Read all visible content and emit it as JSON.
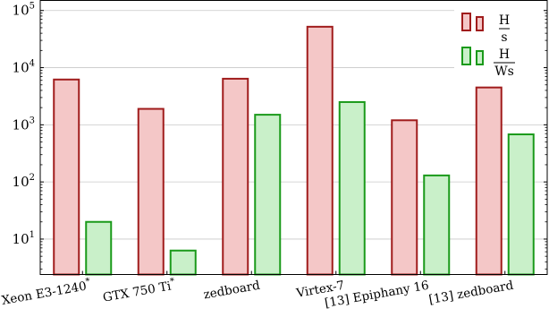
{
  "chart_data": {
    "type": "bar",
    "y_scale": "log",
    "ylim": [
      2.4,
      150000
    ],
    "y_ticks": [
      10,
      100,
      1000,
      10000,
      100000
    ],
    "y_tick_base": "10",
    "y_tick_exponents": [
      "1",
      "2",
      "3",
      "4",
      "5"
    ],
    "grid": "horizontal",
    "legend_position": "top-right",
    "categories": [
      {
        "text": "Xeon E3-1240",
        "sup": "*"
      },
      {
        "text": "GTX 750 Ti",
        "sup": "*"
      },
      {
        "text": "zedboard",
        "sup": ""
      },
      {
        "text": "Virtex-7",
        "sup": ""
      },
      {
        "text": "[13] Epiphany 16",
        "sup": ""
      },
      {
        "text": "[13] zedboard",
        "sup": ""
      }
    ],
    "series": [
      {
        "legend_num": "H",
        "legend_den": "s",
        "fill": "#f4c7c7",
        "stroke": "#a01c1c",
        "values": [
          6200,
          1900,
          6400,
          52000,
          1200,
          4500
        ]
      },
      {
        "legend_num": "H",
        "legend_den": "Ws",
        "fill": "#c9f0c9",
        "stroke": "#1a9a1a",
        "values": [
          20,
          6.3,
          1500,
          2500,
          130,
          680
        ]
      }
    ]
  }
}
